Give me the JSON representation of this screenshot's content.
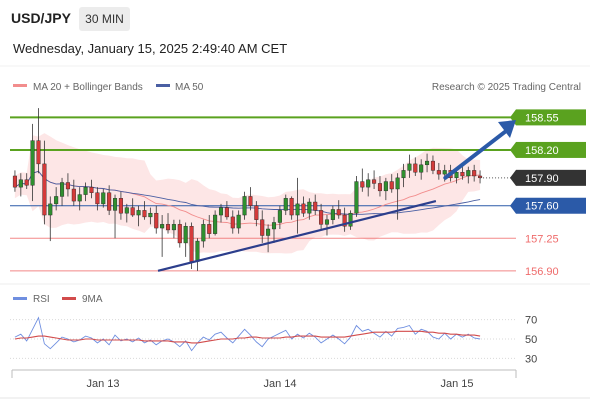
{
  "header": {
    "symbol": "USD/JPY",
    "timeframe": "30 MIN",
    "datetime": "Wednesday, January 15, 2025 2:49:40 AM CET"
  },
  "legend": {
    "ma20_label": "MA 20 + Bollinger Bands",
    "ma50_label": "MA 50",
    "rsi_label": "RSI",
    "ma9_label": "9MA",
    "credit": "Research © 2025 Trading Central"
  },
  "colors": {
    "resistance": "#5aa21f",
    "pivot": "#2b5aa8",
    "support": "#ef6b6b",
    "bollinger_fill": "#fde3e3",
    "ma20": "#f28d8d",
    "ma50": "#4a5fa3",
    "trendline": "#2c3e8c",
    "rsi": "#6f8fe0",
    "rsi_ma": "#d24b4b",
    "candle_up": "#2f8f2f",
    "candle_down": "#d43a3a",
    "current_price_bg": "#333333"
  },
  "chart_data": {
    "type": "candlestick",
    "title": "USD/JPY",
    "timeframe": "30 MIN",
    "ylim": [
      156.78,
      158.78
    ],
    "x_labels": [
      "Jan 13",
      "Jan 14",
      "Jan 15"
    ],
    "current_price": "157.90",
    "levels": [
      {
        "name": "resistance-2",
        "value": 158.55,
        "label": "158.55",
        "kind": "resistance"
      },
      {
        "name": "resistance-1",
        "value": 158.2,
        "label": "158.20",
        "kind": "resistance"
      },
      {
        "name": "pivot",
        "value": 157.6,
        "label": "157.60",
        "kind": "pivot"
      },
      {
        "name": "support-1",
        "value": 157.25,
        "label": "157.25",
        "kind": "support"
      },
      {
        "name": "support-2",
        "value": 156.9,
        "label": "156.90",
        "kind": "support"
      }
    ],
    "trendline": {
      "from": {
        "x": 0.31,
        "y": 156.9
      },
      "to": {
        "x": 0.9,
        "y": 157.65
      }
    },
    "forecast_arrow": {
      "from": {
        "x": 0.92,
        "y": 157.9
      },
      "to": {
        "x": 0.995,
        "y": 158.5
      }
    },
    "candles": [
      [
        157.92,
        157.98,
        157.75,
        157.8
      ],
      [
        157.8,
        157.95,
        157.7,
        157.88
      ],
      [
        157.88,
        157.95,
        157.78,
        157.82
      ],
      [
        157.82,
        158.48,
        157.65,
        158.3
      ],
      [
        158.3,
        158.65,
        157.95,
        158.05
      ],
      [
        158.05,
        158.3,
        157.4,
        157.5
      ],
      [
        157.5,
        157.7,
        157.22,
        157.62
      ],
      [
        157.62,
        157.8,
        157.55,
        157.7
      ],
      [
        157.7,
        157.9,
        157.6,
        157.85
      ],
      [
        157.85,
        157.95,
        157.7,
        157.78
      ],
      [
        157.78,
        157.88,
        157.6,
        157.65
      ],
      [
        157.65,
        157.8,
        157.55,
        157.72
      ],
      [
        157.72,
        157.85,
        157.65,
        157.8
      ],
      [
        157.8,
        157.88,
        157.68,
        157.74
      ],
      [
        157.74,
        157.8,
        157.55,
        157.62
      ],
      [
        157.62,
        157.78,
        157.58,
        157.74
      ],
      [
        157.74,
        157.82,
        157.5,
        157.55
      ],
      [
        157.55,
        157.72,
        157.25,
        157.68
      ],
      [
        157.68,
        157.75,
        157.45,
        157.52
      ],
      [
        157.52,
        157.62,
        157.42,
        157.58
      ],
      [
        157.58,
        157.68,
        157.48,
        157.5
      ],
      [
        157.5,
        157.6,
        157.38,
        157.55
      ],
      [
        157.55,
        157.65,
        157.45,
        157.48
      ],
      [
        157.48,
        157.58,
        157.4,
        157.52
      ],
      [
        157.52,
        157.6,
        157.3,
        157.36
      ],
      [
        157.36,
        157.5,
        157.05,
        157.4
      ],
      [
        157.4,
        157.52,
        157.3,
        157.34
      ],
      [
        157.34,
        157.45,
        157.25,
        157.4
      ],
      [
        157.4,
        157.45,
        157.15,
        157.2
      ],
      [
        157.2,
        157.42,
        157.05,
        157.38
      ],
      [
        157.38,
        157.42,
        156.92,
        157.0
      ],
      [
        157.0,
        157.25,
        156.9,
        157.22
      ],
      [
        157.22,
        157.45,
        157.15,
        157.4
      ],
      [
        157.4,
        157.5,
        157.25,
        157.3
      ],
      [
        157.3,
        157.55,
        157.28,
        157.5
      ],
      [
        157.5,
        157.62,
        157.42,
        157.58
      ],
      [
        157.58,
        157.65,
        157.45,
        157.48
      ],
      [
        157.48,
        157.55,
        157.3,
        157.36
      ],
      [
        157.36,
        157.55,
        157.3,
        157.5
      ],
      [
        157.5,
        157.75,
        157.45,
        157.7
      ],
      [
        157.7,
        157.8,
        157.55,
        157.6
      ],
      [
        157.6,
        157.65,
        157.38,
        157.45
      ],
      [
        157.45,
        157.55,
        157.2,
        157.28
      ],
      [
        157.28,
        157.4,
        157.1,
        157.35
      ],
      [
        157.35,
        157.48,
        157.2,
        157.42
      ],
      [
        157.42,
        157.6,
        157.35,
        157.55
      ],
      [
        157.55,
        157.72,
        157.5,
        157.68
      ],
      [
        157.68,
        157.7,
        157.45,
        157.5
      ],
      [
        157.5,
        157.9,
        157.3,
        157.62
      ],
      [
        157.62,
        157.7,
        157.48,
        157.52
      ],
      [
        157.52,
        157.68,
        157.45,
        157.64
      ],
      [
        157.64,
        157.72,
        157.5,
        157.55
      ],
      [
        157.55,
        157.62,
        157.35,
        157.4
      ],
      [
        157.4,
        157.5,
        157.28,
        157.45
      ],
      [
        157.45,
        157.6,
        157.4,
        157.56
      ],
      [
        157.56,
        157.66,
        157.46,
        157.5
      ],
      [
        157.5,
        157.58,
        157.32,
        157.38
      ],
      [
        157.38,
        157.55,
        157.34,
        157.52
      ],
      [
        157.52,
        157.92,
        157.48,
        157.86
      ],
      [
        157.86,
        158.0,
        157.75,
        157.8
      ],
      [
        157.8,
        157.95,
        157.7,
        157.88
      ],
      [
        157.88,
        157.98,
        157.78,
        157.84
      ],
      [
        157.84,
        157.92,
        157.7,
        157.76
      ],
      [
        157.76,
        157.9,
        157.66,
        157.86
      ],
      [
        157.86,
        157.94,
        157.74,
        157.78
      ],
      [
        157.78,
        157.95,
        157.45,
        157.9
      ],
      [
        157.9,
        158.05,
        157.8,
        157.98
      ],
      [
        157.98,
        158.15,
        157.9,
        158.05
      ],
      [
        158.05,
        158.12,
        157.92,
        157.96
      ],
      [
        157.96,
        158.1,
        157.88,
        158.04
      ],
      [
        158.04,
        158.16,
        157.96,
        158.08
      ],
      [
        158.08,
        158.14,
        157.94,
        157.98
      ],
      [
        157.98,
        158.06,
        157.88,
        157.94
      ],
      [
        157.94,
        158.04,
        157.86,
        157.98
      ],
      [
        157.98,
        158.04,
        157.86,
        157.9
      ],
      [
        157.9,
        158.0,
        157.84,
        157.96
      ],
      [
        157.96,
        158.06,
        157.88,
        157.92
      ],
      [
        157.92,
        158.02,
        157.84,
        157.98
      ],
      [
        157.98,
        158.04,
        157.86,
        157.92
      ],
      [
        157.92,
        157.98,
        157.84,
        157.9
      ]
    ],
    "rsi": {
      "levels": [
        70,
        50,
        30
      ],
      "ylim": [
        20,
        80
      ],
      "values": [
        52,
        55,
        48,
        60,
        72,
        45,
        40,
        46,
        52,
        50,
        47,
        49,
        53,
        51,
        46,
        50,
        44,
        54,
        48,
        50,
        47,
        51,
        46,
        49,
        44,
        48,
        50,
        47,
        42,
        48,
        38,
        46,
        52,
        49,
        55,
        57,
        51,
        46,
        53,
        60,
        54,
        47,
        42,
        50,
        53,
        56,
        59,
        50,
        55,
        51,
        56,
        52,
        46,
        50,
        54,
        50,
        45,
        52,
        64,
        58,
        60,
        56,
        52,
        58,
        53,
        61,
        62,
        64,
        55,
        60,
        58,
        52,
        50,
        56,
        50,
        55,
        52,
        55,
        51,
        50
      ],
      "ma9": [
        50,
        51,
        51,
        52,
        53,
        53,
        52,
        51,
        50,
        49,
        49,
        49,
        50,
        50,
        49,
        49,
        49,
        49,
        49,
        49,
        49,
        49,
        48,
        48,
        48,
        48,
        48,
        47,
        47,
        47,
        46,
        46,
        47,
        48,
        49,
        50,
        50,
        50,
        51,
        51,
        52,
        52,
        51,
        51,
        51,
        51,
        52,
        52,
        53,
        53,
        53,
        53,
        52,
        52,
        52,
        52,
        52,
        53,
        54,
        55,
        56,
        57,
        57,
        57,
        57,
        58,
        58,
        58,
        58,
        58,
        57,
        57,
        56,
        56,
        55,
        55,
        54,
        54,
        54,
        53
      ]
    }
  }
}
